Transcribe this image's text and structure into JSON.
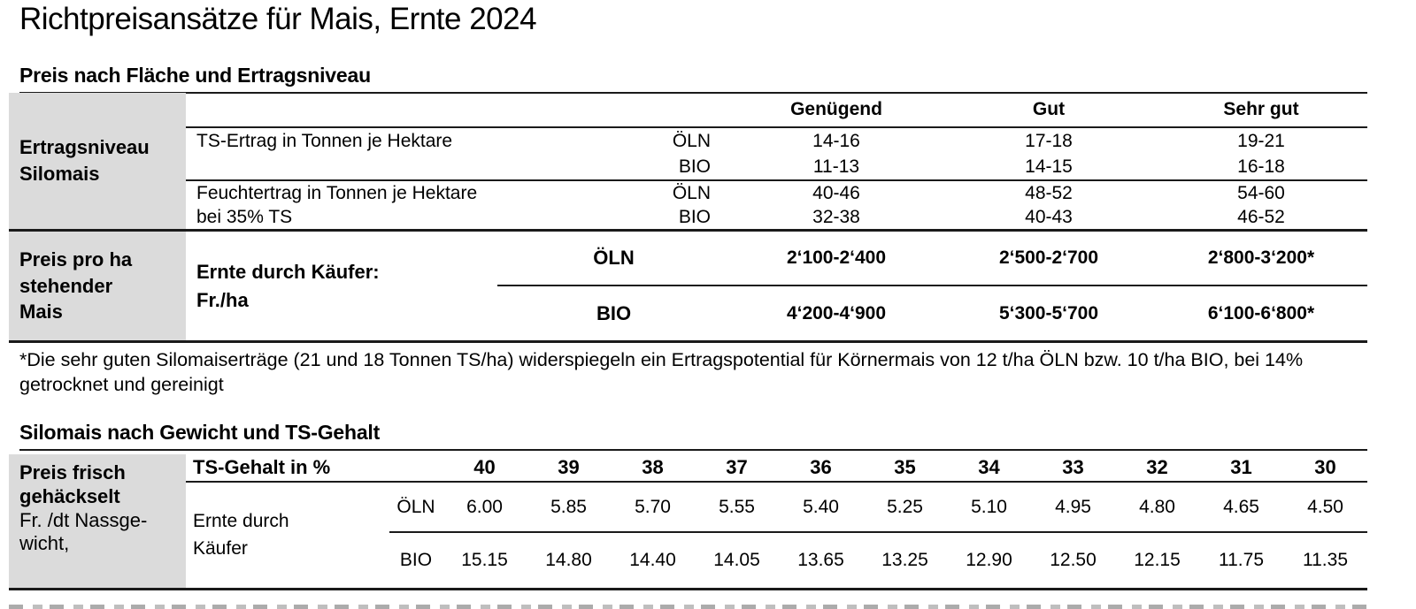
{
  "page": {
    "title": "Richtpreisansätze für Mais, Ernte 2024"
  },
  "labels": {
    "oln": "ÖLN",
    "bio": "BIO"
  },
  "colors": {
    "row_header_bg": "#dbdbdb",
    "rule": "#1a1a1a"
  },
  "section1": {
    "heading": "Preis nach Fläche und Ertragsniveau",
    "col_headers": [
      "Genügend",
      "Gut",
      "Sehr gut"
    ],
    "ertragsniveau": {
      "row_label": "Ertragsniveau Silomais",
      "rows": [
        {
          "desc": "TS-Ertrag in Tonnen je Hektare",
          "desc2": "",
          "oln": [
            "14-16",
            "17-18",
            "19-21"
          ],
          "bio": [
            "11-13",
            "14-15",
            "16-18"
          ]
        },
        {
          "desc": "Feuchtertrag in Tonnen je Hektare",
          "desc2": "bei 35% TS",
          "oln": [
            "40-46",
            "48-52",
            "54-60"
          ],
          "bio": [
            "32-38",
            "40-43",
            "46-52"
          ]
        }
      ]
    },
    "preis": {
      "row_label": "Preis pro ha stehender Mais",
      "desc_line1": "Ernte durch Käufer:",
      "desc_line2": "Fr./ha",
      "oln": [
        "2‘100-2‘400",
        "2‘500-2‘700",
        "2‘800-3‘200*"
      ],
      "bio": [
        "4‘200-4‘900",
        "5‘300-5‘700",
        "6‘100-6‘800*"
      ]
    },
    "footnote": "*Die sehr guten Silomaiserträge (21 und 18 Tonnen TS/ha) widerspiegeln ein Ertragspotential für Körnermais von 12 t/ha ÖLN bzw. 10 t/ha BIO, bei 14% getrocknet und gereinigt"
  },
  "section2": {
    "heading": "Silomais nach Gewicht und TS-Gehalt",
    "row_label_bold": "Preis frisch gehäckselt",
    "row_label_reg1": "Fr. /dt Nassge-",
    "row_label_reg2": "wicht,",
    "ts_header": "TS-Gehalt in %",
    "ts_values": [
      "40",
      "39",
      "38",
      "37",
      "36",
      "35",
      "34",
      "33",
      "32",
      "31",
      "30"
    ],
    "desc_line1": "Ernte durch",
    "desc_line2": "Käufer",
    "oln": [
      "6.00",
      "5.85",
      "5.70",
      "5.55",
      "5.40",
      "5.25",
      "5.10",
      "4.95",
      "4.80",
      "4.65",
      "4.50"
    ],
    "bio": [
      "15.15",
      "14.80",
      "14.40",
      "14.05",
      "13.65",
      "13.25",
      "12.90",
      "12.50",
      "12.15",
      "11.75",
      "11.35"
    ]
  }
}
